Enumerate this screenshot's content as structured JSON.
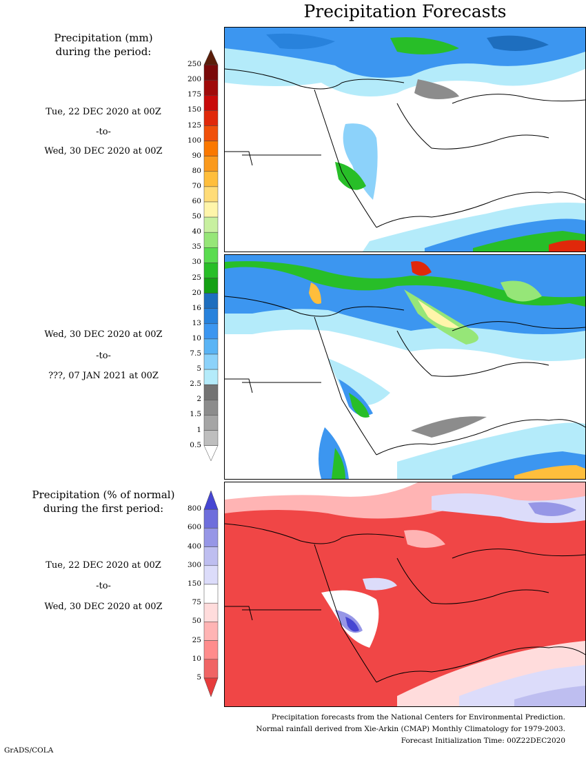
{
  "title": "Precipitation Forecasts",
  "panel1": {
    "header_line1": "Precipitation (mm)",
    "header_line2": "during the period:",
    "start": "Tue, 22 DEC 2020 at 00Z",
    "to": "-to-",
    "end": "Wed, 30 DEC 2020 at 00Z"
  },
  "panel2": {
    "start": "Wed, 30 DEC 2020 at 00Z",
    "to": "-to-",
    "end": "???, 07 JAN 2021 at 00Z"
  },
  "panel3": {
    "header_line1": "Precipitation (% of normal)",
    "header_line2": "during the first period:",
    "start": "Tue, 22 DEC 2020 at 00Z",
    "to": "-to-",
    "end": "Wed, 30 DEC 2020 at 00Z"
  },
  "colorbar_mm": {
    "labels": [
      "250",
      "200",
      "175",
      "150",
      "125",
      "100",
      "90",
      "80",
      "70",
      "60",
      "50",
      "40",
      "35",
      "30",
      "25",
      "20",
      "16",
      "13",
      "10",
      "7.5",
      "5",
      "2.5",
      "2",
      "1.5",
      "1",
      "0.5"
    ],
    "colors": [
      "#5a1e0a",
      "#7a0a0a",
      "#a00a0a",
      "#c80a0a",
      "#e0280a",
      "#f0500a",
      "#fa7800",
      "#fa9a1e",
      "#ffbe3c",
      "#ffdc78",
      "#fff5aa",
      "#c8f0a0",
      "#96e678",
      "#5adc50",
      "#28be28",
      "#14a014",
      "#1e6ebe",
      "#2882dc",
      "#3c96f0",
      "#5ab4f5",
      "#8cd2fa",
      "#b4ebfa",
      "#737373",
      "#8c8c8c",
      "#a5a5a5",
      "#bebebe",
      "#ffffff"
    ]
  },
  "colorbar_pct": {
    "labels": [
      "800",
      "600",
      "400",
      "300",
      "150",
      "75",
      "50",
      "25",
      "10",
      "5"
    ],
    "colors": [
      "#4646d2",
      "#6e6edc",
      "#9696e6",
      "#bebef0",
      "#dcdcfa",
      "#ffffff",
      "#ffdcdc",
      "#ffb4b4",
      "#ff8c8c",
      "#f06464",
      "#e63c3c"
    ]
  },
  "footer": {
    "line1": "Precipitation forecasts from the National Centers for Environmental Prediction.",
    "line2": "Normal rainfall derived from Xie-Arkin (CMAP) Monthly Climatology for 1979-2003.",
    "line3": "Forecast Initialization Time: 00Z22DEC2020"
  },
  "credit": "GrADS/COLA"
}
